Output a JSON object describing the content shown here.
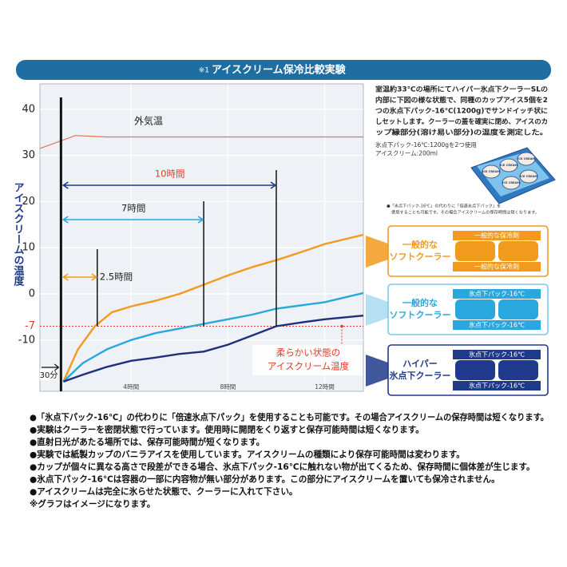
{
  "chart_data": {
    "type": "line",
    "title_mark": "※1",
    "title": "アイスクリーム保冷比較実験",
    "ylabel": "アイスクリームの温度",
    "xlim": [
      0.23,
      13.6
    ],
    "ylim": [
      -21.1,
      45.5
    ],
    "xticks": [
      {
        "value": 4,
        "label": "4時間"
      },
      {
        "value": 8,
        "label": "8時間"
      },
      {
        "value": 12,
        "label": "12時間"
      }
    ],
    "yticks": [
      40,
      30,
      20,
      10,
      0,
      -10
    ],
    "grid": true,
    "threshold": {
      "value": -7,
      "color": "#e03c28",
      "label_lines": [
        "柔らかい状態の",
        "アイスクリーム温度"
      ]
    },
    "start_marker": {
      "text": "30分",
      "x": 1.1
    },
    "spans": [
      {
        "text": "2.5時間",
        "x": 2.6,
        "color": "#f29a1e"
      },
      {
        "text": "7時間",
        "x": 7,
        "color": "#2aa7dd"
      },
      {
        "text": "10時間",
        "x": 10,
        "color": "#1f3a8a"
      }
    ],
    "series": [
      {
        "name": "外気温",
        "color": "#e2735a",
        "x": [
          0.23,
          1.7,
          3,
          13.6
        ],
        "values": [
          31.5,
          34.3,
          34,
          34
        ]
      },
      {
        "name": "一般的なソフトクーラー（一般的な保冷剤）",
        "color": "#f29a1e",
        "x": [
          1.2,
          1.8,
          2.5,
          3.2,
          4,
          5,
          6,
          7,
          8,
          9,
          10,
          11,
          12,
          13.6
        ],
        "values": [
          -19,
          -12,
          -7,
          -4,
          -2.7,
          -1.5,
          0,
          2,
          4,
          5.8,
          7.3,
          9,
          10.8,
          12.8
        ]
      },
      {
        "name": "一般的なソフトクーラー（氷点下パック-16℃）",
        "color": "#2aa7dd",
        "x": [
          1.2,
          2,
          3,
          4,
          5,
          6,
          7,
          8,
          9,
          10,
          11,
          12,
          13.6
        ],
        "values": [
          -19,
          -15,
          -12,
          -10,
          -8.5,
          -7.5,
          -6.5,
          -5.5,
          -4.5,
          -3.2,
          -2.5,
          -1.8,
          0.2
        ]
      },
      {
        "name": "ハイパー氷点下クーラー（氷点下パック-16℃）",
        "color": "#1f2f7c",
        "x": [
          1.2,
          2,
          3,
          4,
          5,
          6,
          7,
          8,
          9,
          10,
          11,
          12,
          13.6
        ],
        "values": [
          -19,
          -17.5,
          -15.8,
          -14.5,
          -13.8,
          -13,
          -12.5,
          -11,
          -9,
          -7,
          -6.2,
          -5.5,
          -4.7
        ]
      }
    ],
    "panels": [
      {
        "lines": [
          "一般的な",
          "ソフトクーラー"
        ],
        "pack": "一般的な保冷剤",
        "color": "#f29a1e",
        "border": "#f29a1e"
      },
      {
        "lines": [
          "一般的な",
          "ソフトクーラー"
        ],
        "pack": "氷点下パック-16℃",
        "color": "#2aa7dd",
        "border": "#7cc8ea"
      },
      {
        "lines": [
          "ハイパー",
          "氷点下クーラー"
        ],
        "pack": "氷点下パック-16℃",
        "color": "#1f3a8a",
        "border": "#1f3a8a"
      }
    ]
  },
  "description": {
    "lines": [
      "室温約33℃の場所にてハイパー氷点下クーラーSLの",
      "内部に下図の様な状態で、同種のカップアイス5個を2",
      "つの氷点下パック-16℃(1200g)でサンドイッチ状に",
      "しセットします。クーラーの蓋を確実に閉め、アイスのカ",
      "ップ縁部分(溶け易い部分)の温度を測定した。"
    ],
    "specs": [
      "氷点下パック-16℃:1200gを2つ使用",
      "アイスクリーム:200ml"
    ],
    "cup_label": "ICE CREAM",
    "note": [
      "●「氷点下パック-16℃」の代わりに「倍速氷点下パック」を",
      "使用することも可能です。その場合アイスクリームの保存時間は短くなります。"
    ]
  },
  "notes": [
    "●「氷点下パック-16℃」の代わりに「倍速氷点下パック」を使用することも可能です。その場合アイスクリームの保存時間は短くなります。",
    "●実験はクーラーを密閉状態で行っています。使用時に開閉をくり返すと保存可能時間は短くなります。",
    "●直射日光があたる場所では、保存可能時間が短くなります。",
    "●実験では紙製カップのバニラアイスを使用しています。アイスクリームの種類により保存可能時間は変わります。",
    "●カップが個々に異なる高さで段差ができる場合、氷点下パック-16℃に触れない物が出てくるため、保存時間に個体差が生じます。",
    "●氷点下パック-16℃は容器の一部に内容物が無い部分があります。この部分にアイスクリームを置いても保冷されません。",
    "●アイスクリームは完全に氷らせた状態で、クーラーに入れて下さい。",
    "※グラフはイメージになります。"
  ]
}
